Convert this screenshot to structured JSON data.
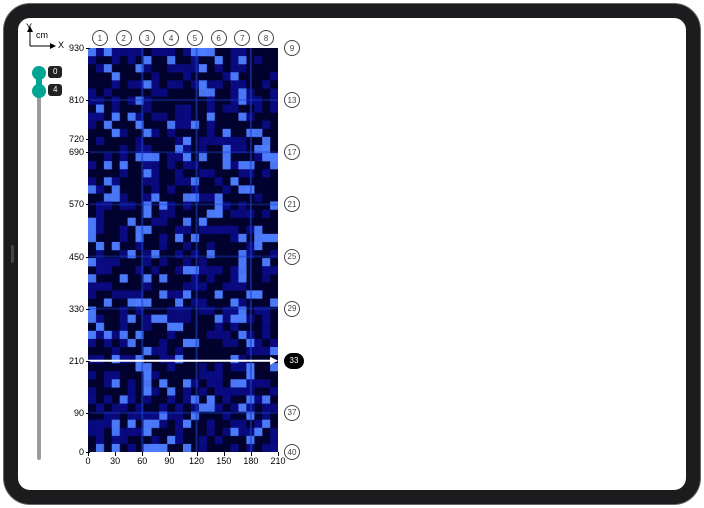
{
  "axis_key": {
    "y_label": "Y",
    "x_label": "X",
    "unit": "cm"
  },
  "depth_slider": {
    "value_top": "0",
    "value_bottom": "4",
    "knob_color": "#00a693",
    "track_color": "#9b9b9b"
  },
  "heatmap": {
    "type": "heatmap",
    "xlim": [
      0,
      210
    ],
    "ylim": [
      0,
      930
    ],
    "x_ticks": [
      0,
      30,
      60,
      90,
      120,
      150,
      180,
      210
    ],
    "y_ticks": [
      0,
      90,
      210,
      330,
      450,
      570,
      690,
      720,
      810,
      930
    ],
    "tick_fontsize": 9,
    "background_color": "#03033a",
    "colormap_low": "#010128",
    "colormap_mid": "#0b0b8a",
    "colormap_high": "#4d7dff",
    "feature_lines_x": [
      60,
      120,
      180
    ],
    "feature_lines_y": [
      90,
      210,
      330,
      450,
      570,
      690,
      810
    ],
    "feature_line_color": "#1a3fc8",
    "scan_indicator": {
      "y_value": 210,
      "color": "#ffffff",
      "marker_id": 33
    }
  },
  "top_markers": {
    "count": 8,
    "ids": [
      1,
      2,
      3,
      4,
      5,
      6,
      7,
      8
    ]
  },
  "right_markers": {
    "ids": [
      9,
      13,
      17,
      21,
      25,
      29,
      33,
      37,
      40
    ],
    "y_values": [
      930,
      810,
      690,
      570,
      450,
      330,
      210,
      90,
      0
    ],
    "active_id": 33
  },
  "colors": {
    "frame": "#1c1c1e",
    "circle_border": "#444444",
    "circle_active_bg": "#000000",
    "text": "#000000"
  }
}
